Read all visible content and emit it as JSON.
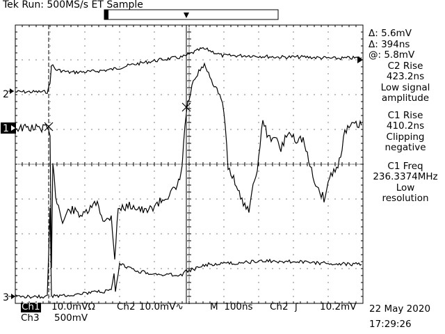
{
  "header": {
    "title": "Tek Run: 500MS/s ET Sample"
  },
  "markers": {
    "ch2": "2",
    "ch1": "1",
    "ch3": "3"
  },
  "measurements": {
    "delta_v": "Δ: 5.6mV",
    "delta_t": "Δ: 394ns",
    "at_v": "@: 5.8mV",
    "m1_title": "C2 Rise",
    "m1_value": "423.2ns",
    "m1_note1": "Low signal",
    "m1_note2": "amplitude",
    "m2_title": "C1 Rise",
    "m2_value": "410.2ns",
    "m2_note1": "Clipping",
    "m2_note2": "negative",
    "m3_title": "C1 Freq",
    "m3_value": "236.3374MHz",
    "m3_note1": "Low",
    "m3_note2": "resolution"
  },
  "status_bar": {
    "ch1_label": "Ch1",
    "ch1_scale": "10.0mVΩ",
    "ch2_label": "Ch2",
    "ch2_scale": "10.0mV∿",
    "timebase": "M  100ns",
    "trigger_ch": "Ch2",
    "trigger_slope": "ʃ",
    "trigger_level": "10.2mV",
    "ch3_label": "Ch3",
    "ch3_scale": "500mV",
    "date": "22 May 2020",
    "time": "17:29:26"
  },
  "colors": {
    "background": "#ffffff",
    "trace": "#000000",
    "grid": "#000000"
  }
}
